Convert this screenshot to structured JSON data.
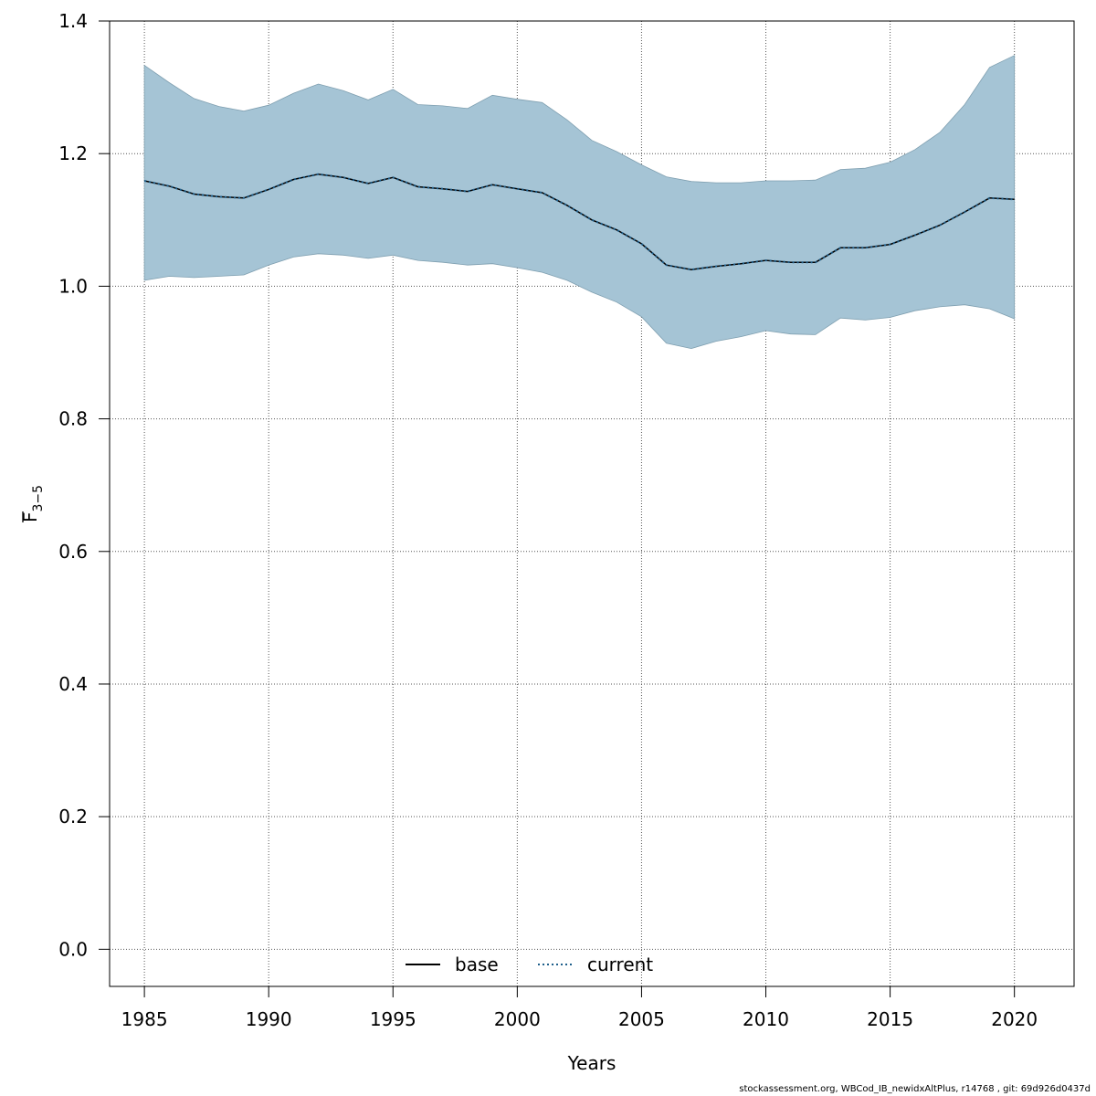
{
  "chart_data": {
    "type": "line",
    "title": "",
    "xlabel": "Years",
    "ylabel_main": "F",
    "ylabel_sub": "3−5",
    "xlim": [
      1983.6,
      2022.4
    ],
    "ylim": [
      -0.056,
      1.4
    ],
    "x_ticks": [
      1985,
      1990,
      1995,
      2000,
      2005,
      2010,
      2015,
      2020
    ],
    "y_ticks": [
      0.0,
      0.2,
      0.4,
      0.6,
      0.8,
      1.0,
      1.2,
      1.4
    ],
    "y_tick_labels": [
      "0.0",
      "0.2",
      "0.4",
      "0.6",
      "0.8",
      "1.0",
      "1.2",
      "1.4"
    ],
    "grid": true,
    "legend_position": "bottom-center",
    "x": [
      1985,
      1986,
      1987,
      1988,
      1989,
      1990,
      1991,
      1992,
      1993,
      1994,
      1995,
      1996,
      1997,
      1998,
      1999,
      2000,
      2001,
      2002,
      2003,
      2004,
      2005,
      2006,
      2007,
      2008,
      2009,
      2010,
      2011,
      2012,
      2013,
      2014,
      2015,
      2016,
      2017,
      2018,
      2019,
      2020
    ],
    "series": [
      {
        "name": "base",
        "style": "solid",
        "color": "#000000",
        "values": [
          1.159,
          1.151,
          1.139,
          1.135,
          1.133,
          1.146,
          1.161,
          1.169,
          1.164,
          1.155,
          1.164,
          1.15,
          1.147,
          1.143,
          1.153,
          1.147,
          1.141,
          1.122,
          1.1,
          1.085,
          1.064,
          1.032,
          1.025,
          1.03,
          1.034,
          1.039,
          1.036,
          1.036,
          1.058,
          1.058,
          1.063,
          1.077,
          1.092,
          1.112,
          1.133,
          1.131
        ]
      },
      {
        "name": "current",
        "style": "dotted",
        "color": "#1f5f8b",
        "values": [
          1.159,
          1.151,
          1.139,
          1.135,
          1.133,
          1.146,
          1.161,
          1.169,
          1.164,
          1.155,
          1.164,
          1.15,
          1.147,
          1.143,
          1.153,
          1.147,
          1.141,
          1.122,
          1.1,
          1.085,
          1.064,
          1.032,
          1.025,
          1.03,
          1.034,
          1.039,
          1.036,
          1.036,
          1.058,
          1.058,
          1.063,
          1.077,
          1.092,
          1.112,
          1.133,
          1.131
        ]
      }
    ],
    "band": {
      "color": "#a5c4d5",
      "upper": [
        1.333,
        1.307,
        1.283,
        1.271,
        1.264,
        1.273,
        1.291,
        1.305,
        1.295,
        1.281,
        1.297,
        1.274,
        1.272,
        1.268,
        1.288,
        1.282,
        1.277,
        1.251,
        1.22,
        1.203,
        1.183,
        1.165,
        1.158,
        1.156,
        1.156,
        1.159,
        1.159,
        1.16,
        1.176,
        1.178,
        1.187,
        1.206,
        1.232,
        1.274,
        1.33,
        1.348
      ],
      "lower": [
        1.009,
        1.015,
        1.013,
        1.015,
        1.017,
        1.032,
        1.044,
        1.049,
        1.047,
        1.042,
        1.047,
        1.039,
        1.036,
        1.032,
        1.034,
        1.028,
        1.021,
        1.009,
        0.991,
        0.976,
        0.954,
        0.914,
        0.906,
        0.917,
        0.924,
        0.933,
        0.928,
        0.927,
        0.952,
        0.949,
        0.953,
        0.963,
        0.969,
        0.972,
        0.966,
        0.951
      ]
    }
  },
  "footer": {
    "credit": "stockassessment.org, WBCod_IB_newidxAltPlus, r14768 , git: 69d926d0437d"
  }
}
